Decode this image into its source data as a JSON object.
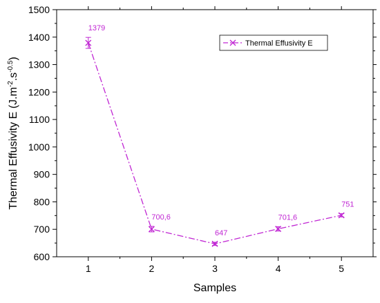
{
  "chart_data": {
    "type": "line",
    "title": "",
    "xlabel": "Samples",
    "ylabel": "Thermal Effusivity E (J.m⁻².s⁻⁰˙⁵)",
    "ylabel_parts": {
      "base": "Thermal Effusivity E (J.m",
      "sup1": "-2",
      "mid": ".s",
      "sup2": "-0.5",
      "end": ")"
    },
    "xlim": [
      0.5,
      5.5
    ],
    "ylim": [
      600,
      1500
    ],
    "xticks": [
      1,
      2,
      3,
      4,
      5
    ],
    "yticks": [
      600,
      700,
      800,
      900,
      1000,
      1100,
      1200,
      1300,
      1400,
      1500
    ],
    "grid": false,
    "legend_position": "top-right",
    "series": [
      {
        "name": "Thermal Effusivity E",
        "color": "#c026d3",
        "line_style": "dash-dot",
        "marker": "x",
        "x": [
          1,
          2,
          3,
          4,
          5
        ],
        "y": [
          1379,
          700.6,
          647,
          701.6,
          751
        ],
        "errors": [
          20,
          10,
          6,
          8,
          6
        ],
        "labels": [
          "1379",
          "700,6",
          "647",
          "701,6",
          "751"
        ]
      }
    ]
  }
}
